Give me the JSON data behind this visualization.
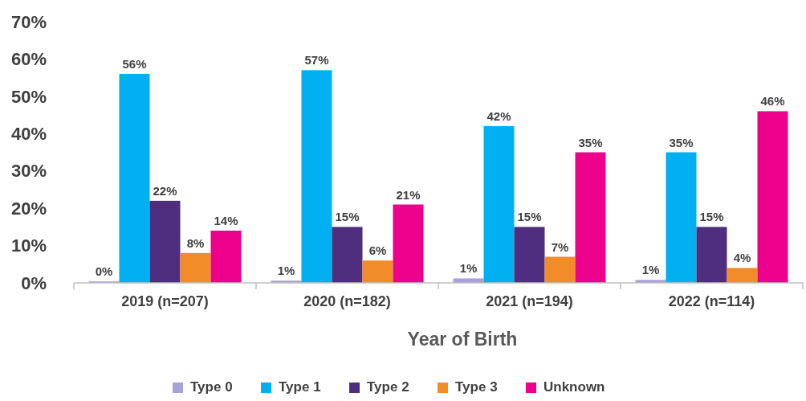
{
  "chart_data": {
    "type": "bar",
    "xlabel": "Year of Birth",
    "categories": [
      "2019 (n=207)",
      "2020 (n=182)",
      "2021 (n=194)",
      "2022 (n=114)"
    ],
    "series": [
      {
        "name": "Type 0",
        "color": "#a9a1d9",
        "values": [
          0.4,
          0.6,
          1.2,
          0.8
        ],
        "value_labels": [
          "0%",
          "1%",
          "1%",
          "1%"
        ]
      },
      {
        "name": "Type 1",
        "color": "#00b0f0",
        "values": [
          56,
          57,
          42,
          35
        ],
        "value_labels": [
          "56%",
          "57%",
          "42%",
          "35%"
        ]
      },
      {
        "name": "Type 2",
        "color": "#4f2d7f",
        "values": [
          22,
          15,
          15,
          15
        ],
        "value_labels": [
          "22%",
          "15%",
          "15%",
          "15%"
        ]
      },
      {
        "name": "Type 3",
        "color": "#f28c28",
        "values": [
          8,
          6,
          7,
          4
        ],
        "value_labels": [
          "8%",
          "6%",
          "7%",
          "4%"
        ]
      },
      {
        "name": "Unknown",
        "color": "#ec008c",
        "values": [
          14,
          21,
          35,
          46
        ],
        "value_labels": [
          "14%",
          "21%",
          "35%",
          "46%"
        ]
      }
    ],
    "ylim": [
      0,
      70
    ],
    "yticks": [
      {
        "value": 0,
        "label": "0%"
      },
      {
        "value": 10,
        "label": "10%"
      },
      {
        "value": 20,
        "label": "20%"
      },
      {
        "value": 30,
        "label": "30%"
      },
      {
        "value": 40,
        "label": "40%"
      },
      {
        "value": 50,
        "label": "50%"
      },
      {
        "value": 60,
        "label": "60%"
      },
      {
        "value": 70,
        "label": "70%"
      }
    ],
    "legend": "bottom"
  }
}
